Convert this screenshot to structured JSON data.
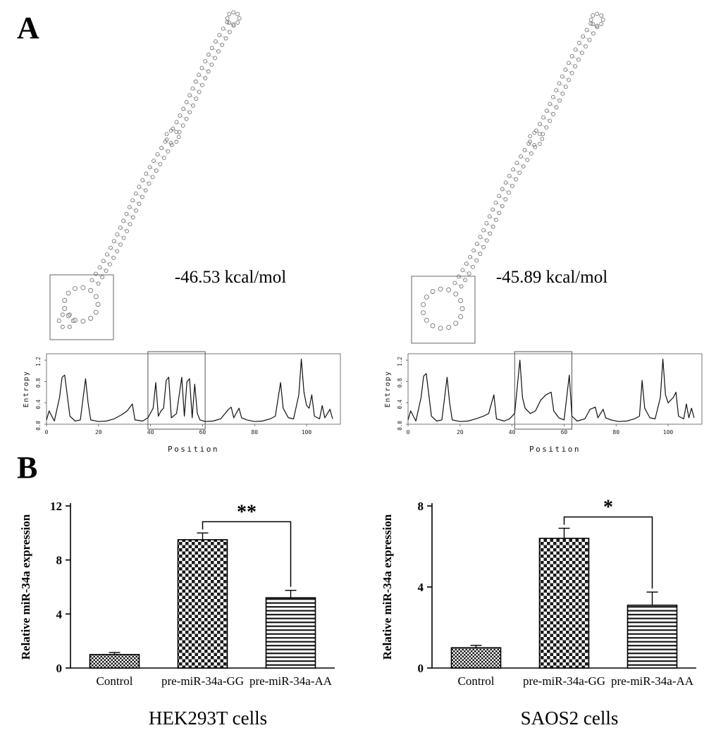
{
  "panels": {
    "a": {
      "label": "A",
      "structures": [
        {
          "energy": "-46.53 kcal/mol"
        },
        {
          "energy": "-45.89 kcal/mol"
        }
      ]
    },
    "b": {
      "label": "B"
    }
  },
  "chart_data": [
    {
      "type": "line",
      "panel": "A-left-entropy",
      "title": "",
      "xlabel": "Position",
      "ylabel": "Entropy",
      "xlim": [
        0,
        113
      ],
      "ylim": [
        0,
        1.32
      ],
      "yticks": [
        0.0,
        0.4,
        0.8,
        1.2
      ],
      "xticks": [
        0,
        20,
        40,
        60,
        80,
        100
      ],
      "highlight_box_x": [
        39,
        61
      ],
      "x": [
        0,
        1,
        3,
        5,
        6,
        7,
        9,
        11,
        13,
        15,
        16,
        17,
        20,
        23,
        26,
        29,
        31,
        33,
        34,
        37,
        39,
        41,
        42,
        43,
        44,
        45,
        46,
        47,
        48,
        50,
        52,
        53,
        54,
        55,
        56,
        57,
        58,
        59,
        61,
        64,
        67,
        70,
        71,
        72,
        74,
        75,
        77,
        80,
        83,
        86,
        88,
        90,
        91,
        93,
        95,
        97,
        98,
        99,
        100,
        101,
        102,
        103,
        105,
        106,
        107,
        109,
        110
      ],
      "y": [
        0.08,
        0.25,
        0.06,
        0.5,
        0.88,
        0.92,
        0.15,
        0.06,
        0.08,
        0.85,
        0.4,
        0.08,
        0.05,
        0.06,
        0.1,
        0.18,
        0.25,
        0.38,
        0.08,
        0.06,
        0.12,
        0.3,
        0.78,
        0.15,
        0.25,
        0.3,
        0.82,
        0.88,
        0.12,
        0.2,
        0.88,
        0.15,
        0.8,
        0.85,
        0.12,
        0.75,
        0.2,
        0.08,
        0.05,
        0.06,
        0.1,
        0.28,
        0.32,
        0.12,
        0.3,
        0.12,
        0.08,
        0.05,
        0.06,
        0.1,
        0.15,
        0.78,
        0.3,
        0.12,
        0.1,
        0.55,
        1.22,
        0.6,
        0.35,
        0.3,
        0.55,
        0.15,
        0.1,
        0.35,
        0.12,
        0.28,
        0.1
      ]
    },
    {
      "type": "line",
      "panel": "A-right-entropy",
      "title": "",
      "xlabel": "Position",
      "ylabel": "Entropy",
      "xlim": [
        0,
        113
      ],
      "ylim": [
        0,
        1.32
      ],
      "yticks": [
        0.0,
        0.4,
        0.8,
        1.2
      ],
      "xticks": [
        0,
        20,
        40,
        60,
        80,
        100
      ],
      "highlight_box_x": [
        41,
        63
      ],
      "x": [
        0,
        1,
        3,
        5,
        6,
        7,
        9,
        11,
        13,
        15,
        16,
        17,
        20,
        23,
        26,
        29,
        31,
        33,
        34,
        37,
        39,
        41,
        43,
        44,
        45,
        47,
        49,
        51,
        53,
        55,
        56,
        58,
        60,
        62,
        63,
        65,
        68,
        70,
        72,
        73,
        75,
        76,
        78,
        81,
        84,
        87,
        89,
        90,
        91,
        93,
        95,
        97,
        98,
        99,
        100,
        102,
        103,
        104,
        106,
        107,
        108,
        109,
        110
      ],
      "y": [
        0.08,
        0.25,
        0.06,
        0.5,
        0.9,
        0.95,
        0.15,
        0.06,
        0.08,
        0.88,
        0.4,
        0.08,
        0.05,
        0.06,
        0.1,
        0.15,
        0.2,
        0.55,
        0.1,
        0.06,
        0.1,
        0.2,
        1.2,
        0.5,
        0.3,
        0.2,
        0.25,
        0.45,
        0.55,
        0.6,
        0.25,
        0.12,
        0.08,
        0.92,
        0.15,
        0.06,
        0.1,
        0.28,
        0.32,
        0.12,
        0.28,
        0.12,
        0.08,
        0.05,
        0.06,
        0.1,
        0.15,
        0.82,
        0.3,
        0.12,
        0.1,
        0.5,
        1.22,
        0.55,
        0.4,
        0.5,
        0.6,
        0.15,
        0.1,
        0.38,
        0.12,
        0.3,
        0.12
      ]
    },
    {
      "type": "bar",
      "panel": "B-left",
      "title": "HEK293T cells",
      "xlabel": "",
      "ylabel": "Relative miR-34a expression",
      "categories": [
        "Control",
        "pre-miR-34a-GG",
        "pre-miR-34a-AA"
      ],
      "values": [
        1.0,
        9.5,
        5.2
      ],
      "errors": [
        0.15,
        0.5,
        0.55
      ],
      "ylim": [
        0,
        12
      ],
      "yticks": [
        0,
        4,
        8,
        12
      ],
      "significance": {
        "label": "**",
        "between": [
          1,
          2
        ]
      },
      "bar_patterns": [
        "checker-small",
        "checker",
        "hlines"
      ]
    },
    {
      "type": "bar",
      "panel": "B-right",
      "title": "SAOS2 cells",
      "xlabel": "",
      "ylabel": "Relative miR-34a expression",
      "categories": [
        "Control",
        "pre-miR-34a-GG",
        "pre-miR-34a-AA"
      ],
      "values": [
        1.0,
        6.4,
        3.1
      ],
      "errors": [
        0.12,
        0.5,
        0.65
      ],
      "ylim": [
        0,
        8
      ],
      "yticks": [
        0,
        4,
        8
      ],
      "significance": {
        "label": "*",
        "between": [
          1,
          2
        ]
      },
      "bar_patterns": [
        "checker-small",
        "checker",
        "hlines"
      ]
    }
  ]
}
